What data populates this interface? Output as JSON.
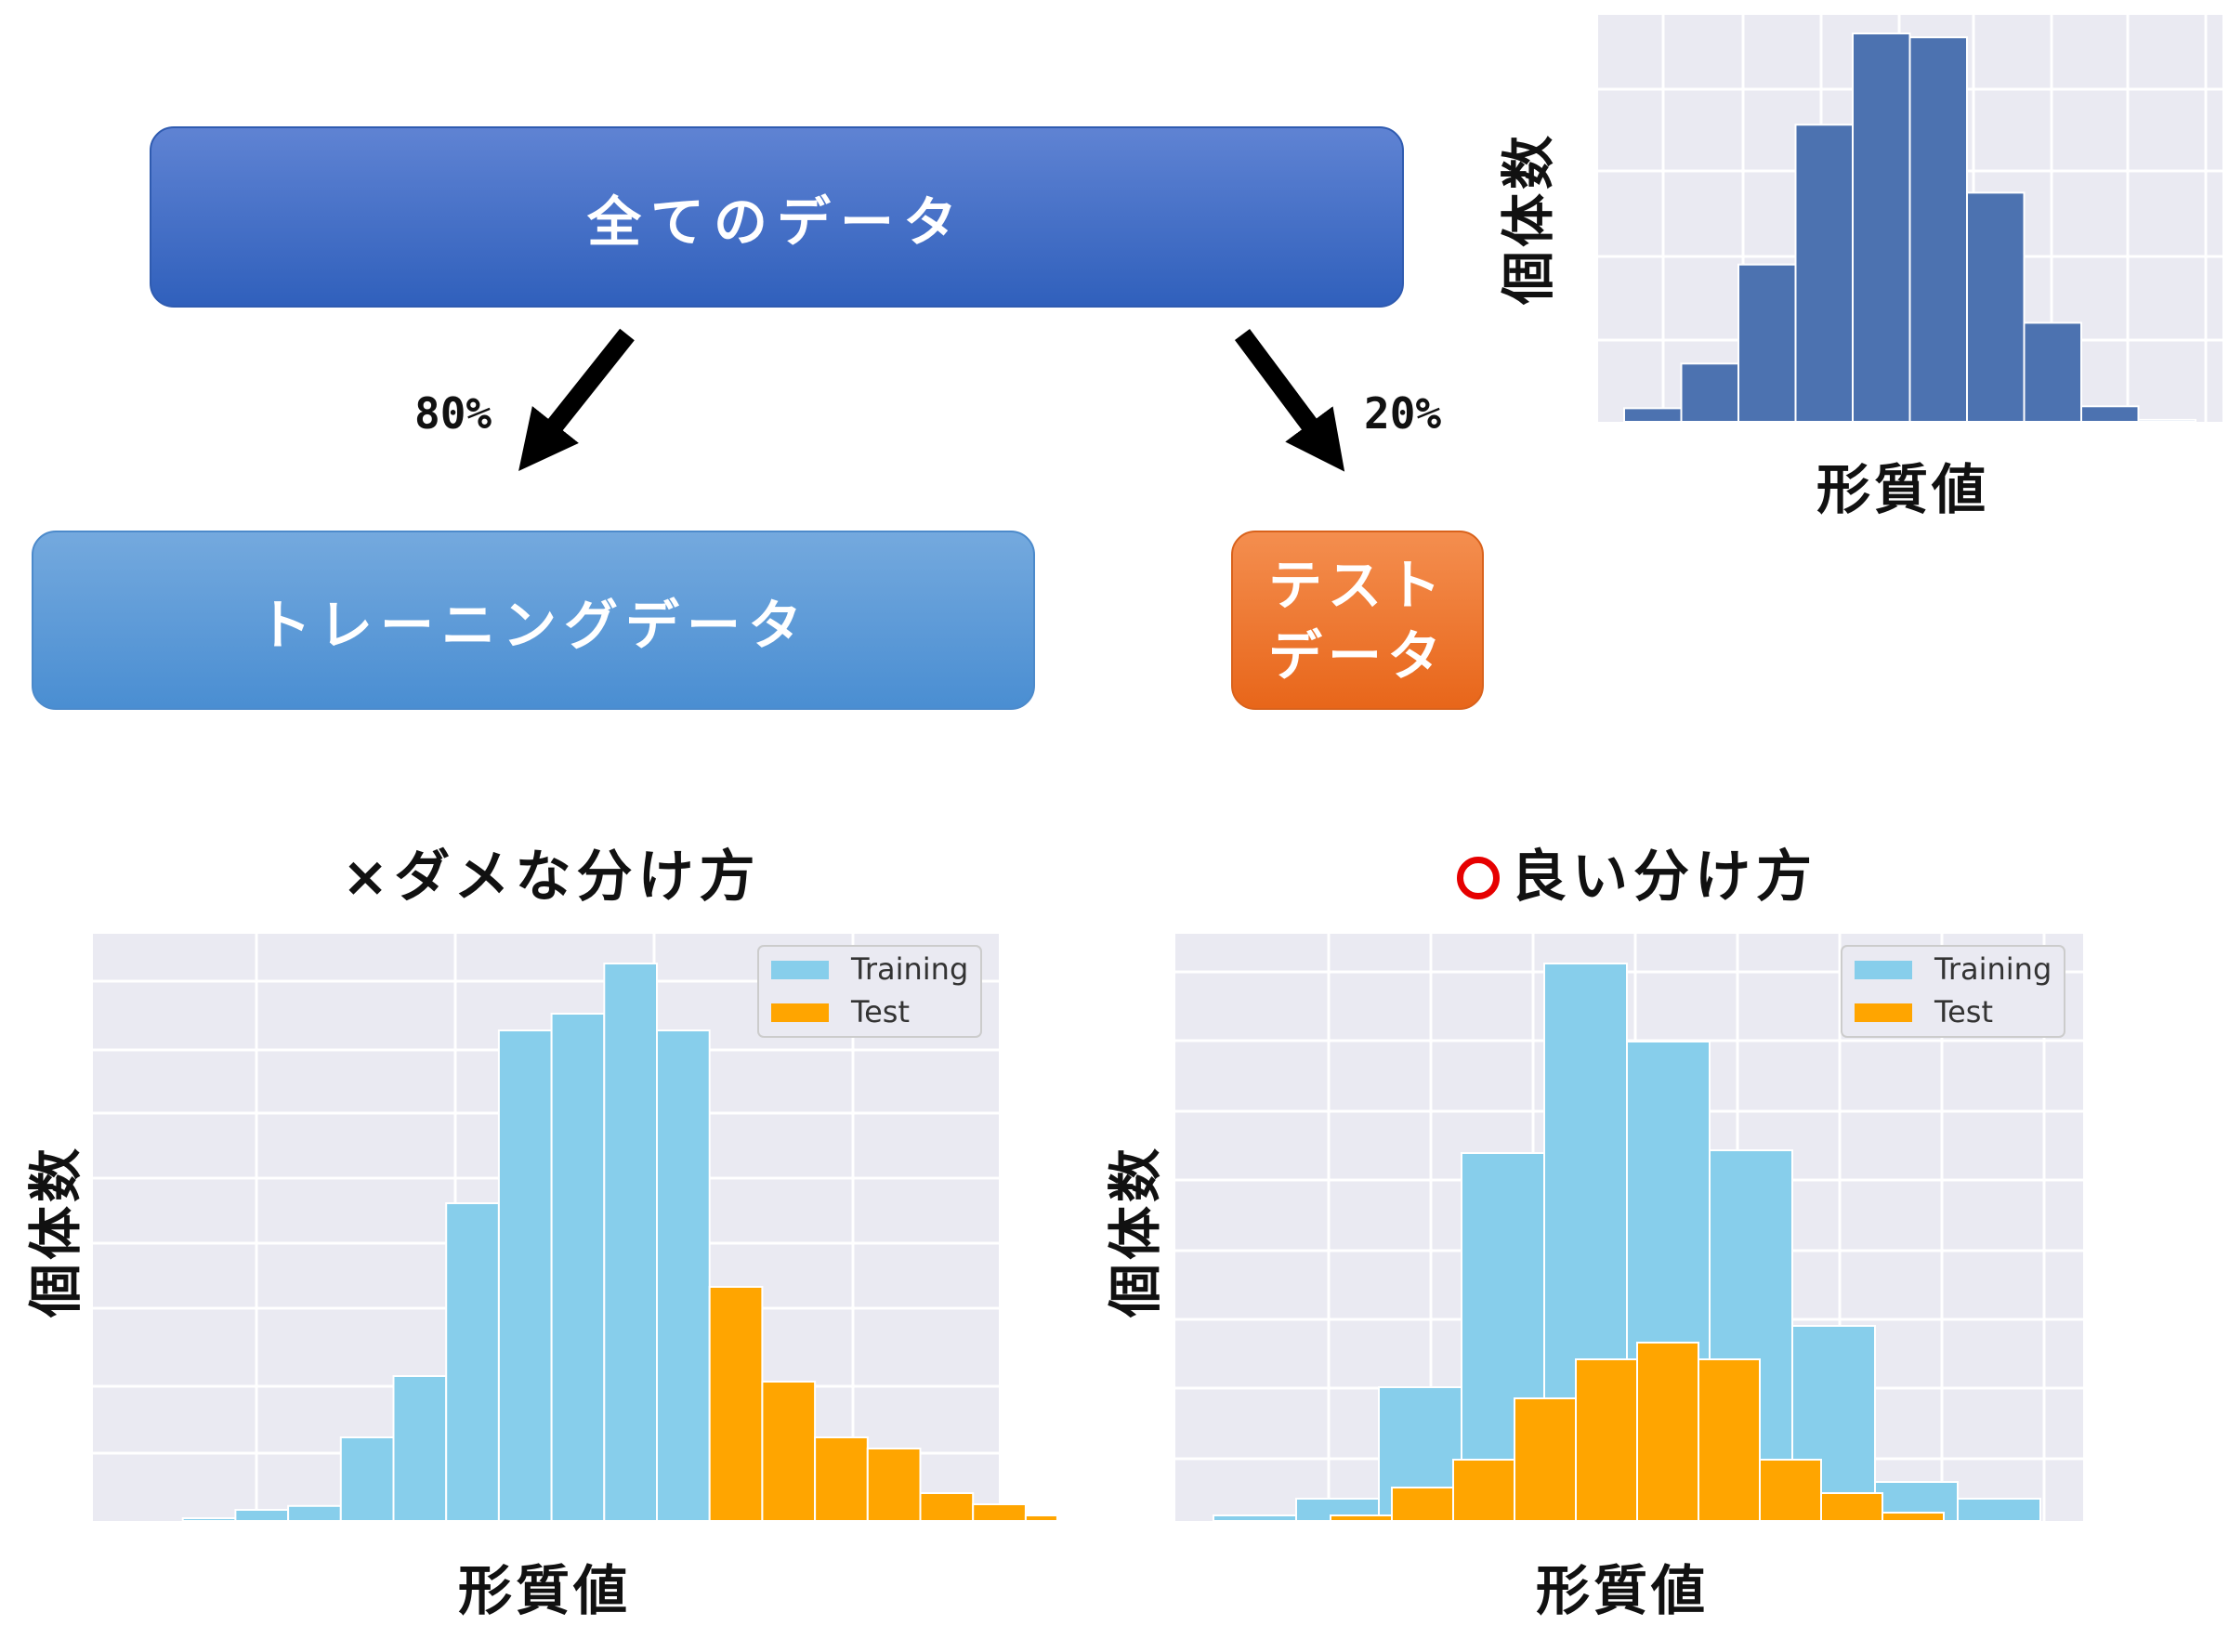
{
  "flow": {
    "all_data": "全てのデータ",
    "training_data": "トレーニングデータ",
    "test_data_line1": "テスト",
    "test_data_line2": "データ",
    "train_pct": "80%",
    "test_pct": "20%"
  },
  "titles": {
    "bad_split": "×ダメな分け方",
    "good_split": "良い分け方"
  },
  "axis": {
    "xlabel": "形質値",
    "ylabel": "個体数"
  },
  "colors": {
    "all_bar": "#4c72b0",
    "training_bar": "#87ceeb",
    "test_bar": "#ffa500",
    "plot_bg": "#eaeaf2",
    "good_mark": "#e60000"
  },
  "chart_data": [
    {
      "type": "bar",
      "name": "all-data-histogram",
      "bins": 10,
      "values": [
        0.035,
        0.15,
        0.405,
        0.765,
        1.0,
        0.99,
        0.59,
        0.255,
        0.04,
        0.005
      ],
      "ylim": [
        0,
        1.05
      ],
      "grid": true,
      "xlabel": "形質値",
      "ylabel": "個体数"
    },
    {
      "type": "bar",
      "name": "bad-split-histogram",
      "bins": 16,
      "series": [
        {
          "name": "Training",
          "values": [
            0.005,
            0.02,
            0.027,
            0.15,
            0.26,
            0.57,
            0.88,
            0.91,
            1.0,
            0.88,
            0,
            0,
            0,
            0,
            0,
            0
          ]
        },
        {
          "name": "Test",
          "values": [
            0,
            0,
            0,
            0,
            0,
            0,
            0,
            0,
            0,
            0,
            0.42,
            0.25,
            0.15,
            0.13,
            0.05,
            0.03
          ]
        }
      ],
      "extra_test_bin": 0.01,
      "ylim": [
        0,
        1.0
      ],
      "legend": "top-right",
      "grid": true,
      "xlabel": "形質値",
      "ylabel": "個体数"
    },
    {
      "type": "bar",
      "name": "good-split-histogram",
      "series": [
        {
          "name": "Training",
          "bins": 10,
          "values": [
            0.01,
            0.04,
            0.24,
            0.66,
            1.0,
            0.86,
            0.665,
            0.35,
            0.07,
            0.04
          ]
        },
        {
          "name": "Test",
          "bins": 10,
          "values": [
            0.01,
            0.06,
            0.11,
            0.22,
            0.29,
            0.32,
            0.29,
            0.11,
            0.05,
            0.015
          ]
        }
      ],
      "ylim": [
        0,
        1.07
      ],
      "legend": "top-right",
      "grid": true,
      "xlabel": "形質値",
      "ylabel": "個体数"
    }
  ]
}
